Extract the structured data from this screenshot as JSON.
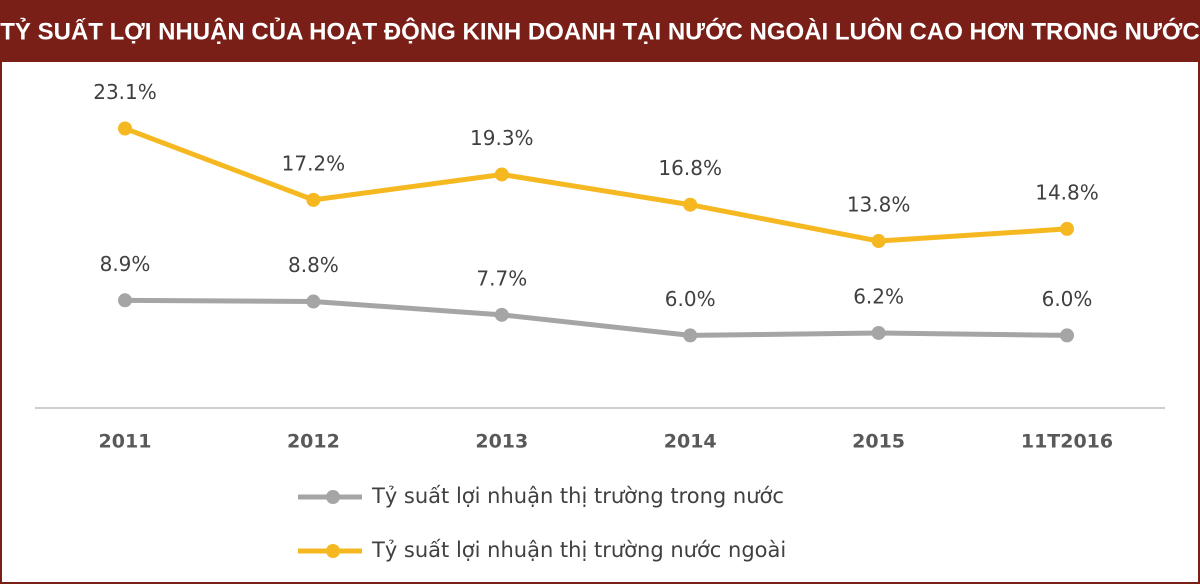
{
  "chart_data": {
    "type": "line",
    "title": "TỶ SUẤT LỢI NHUẬN CỦA HOẠT ĐỘNG KINH DOANH TẠI NƯỚC NGOÀI LUÔN CAO HƠN TRONG NƯỚC",
    "categories": [
      "2011",
      "2012",
      "2013",
      "2014",
      "2015",
      "11T2016"
    ],
    "series": [
      {
        "name": "Tỷ  suất lợi nhuận thị trường trong nước",
        "color": "#a5a5a5",
        "values": [
          8.9,
          8.8,
          7.7,
          6.0,
          6.2,
          6.0
        ],
        "value_labels": [
          "8.9%",
          "8.8%",
          "7.7%",
          "6.0%",
          "6.2%",
          "6.0%"
        ]
      },
      {
        "name": "Tỷ  suất lợi nhuận thị trường nước ngoài",
        "color": "#f5b820",
        "values": [
          23.1,
          17.2,
          19.3,
          16.8,
          13.8,
          14.8
        ],
        "value_labels": [
          "23.1%",
          "17.2%",
          "19.3%",
          "16.8%",
          "13.8%",
          "14.8%"
        ]
      }
    ],
    "ylim": [
      0,
      30
    ],
    "legend": "bottom"
  }
}
